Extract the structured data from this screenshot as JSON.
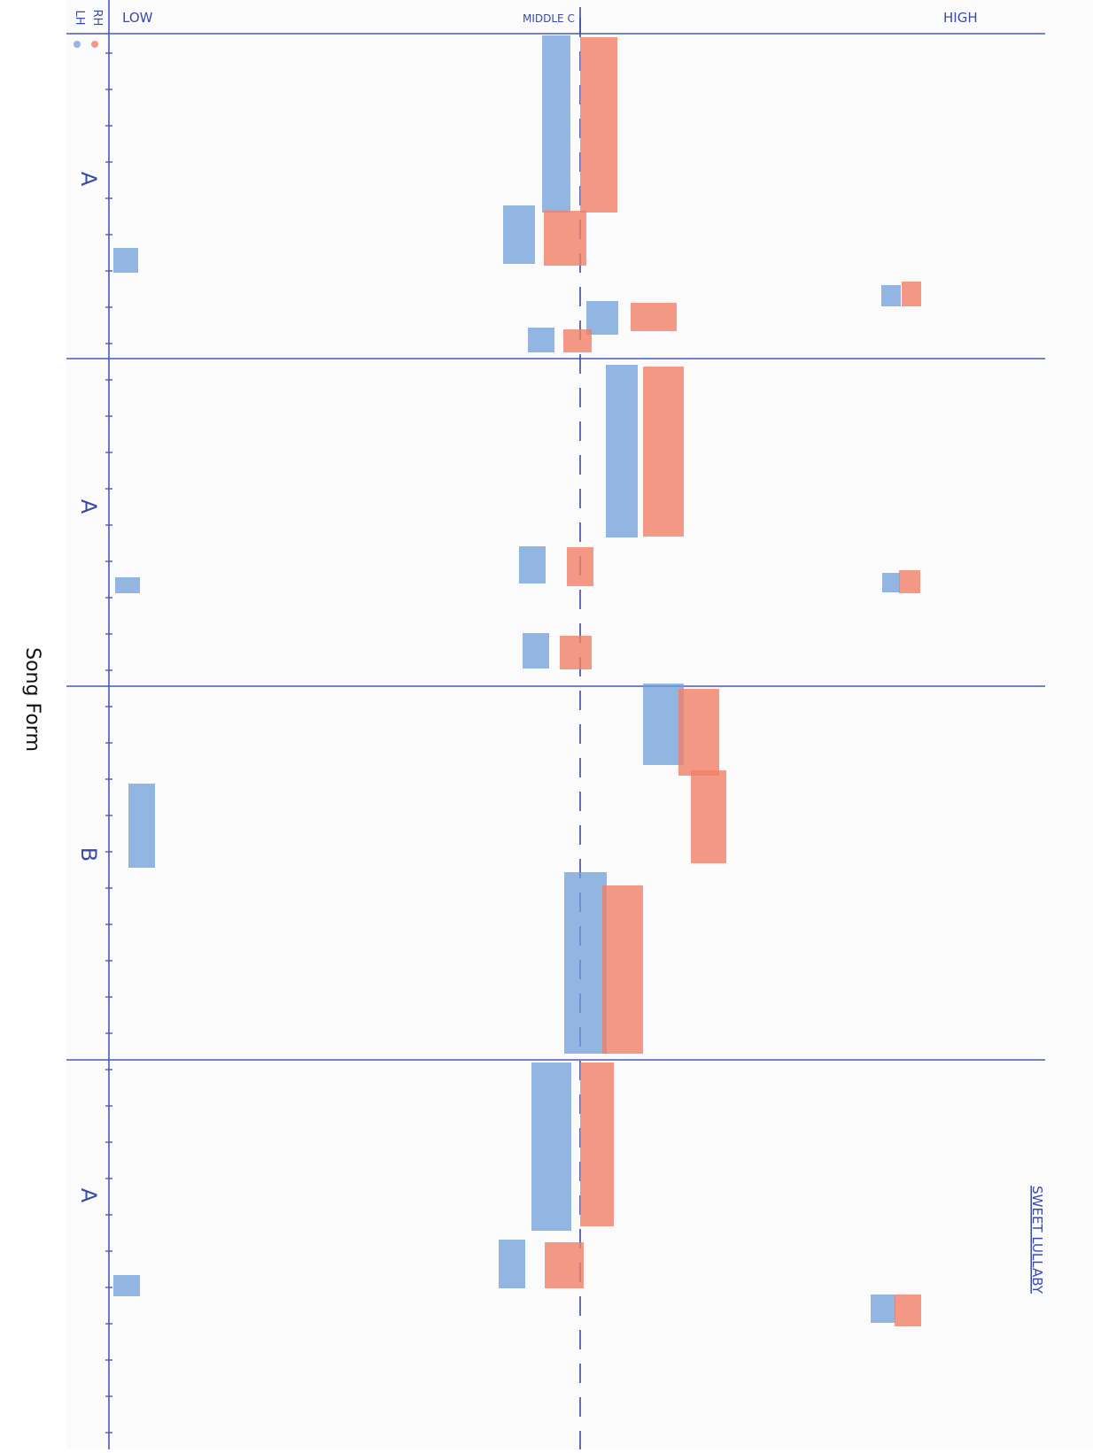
{
  "caption": "Song Form",
  "title": "SWEET LULLABY",
  "legend": {
    "left_hand": "LH",
    "right_hand": "RH"
  },
  "pitch_axis": {
    "low": "LOW",
    "middle": "MIDDLE C",
    "high": "HIGH"
  },
  "sections": [
    "A",
    "A",
    "B",
    "A"
  ]
}
